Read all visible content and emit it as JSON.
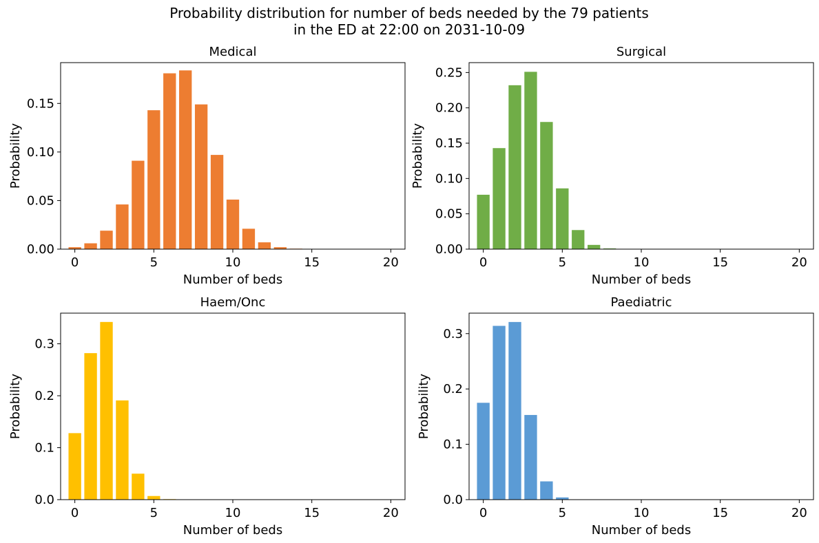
{
  "figure": {
    "title_line1": "Probability distribution for number of beds needed by the 79 patients",
    "title_line2": "in the ED at 22:00 on 2031-10-09"
  },
  "chart_data": [
    {
      "type": "bar",
      "title": "Medical",
      "xlabel": "Number of beds",
      "ylabel": "Probability",
      "color": "#ed7d31",
      "xlim": [
        -0.9,
        20.9
      ],
      "ylim": [
        0,
        0.192
      ],
      "xticks": [
        0,
        5,
        10,
        15,
        20
      ],
      "yticks": [
        0.0,
        0.05,
        0.1,
        0.15
      ],
      "ytick_labels": [
        "0.00",
        "0.05",
        "0.10",
        "0.15"
      ],
      "x": [
        0,
        1,
        2,
        3,
        4,
        5,
        6,
        7,
        8,
        9,
        10,
        11,
        12,
        13,
        14,
        15,
        16,
        17,
        18,
        19,
        20
      ],
      "values": [
        0.002,
        0.006,
        0.019,
        0.046,
        0.091,
        0.143,
        0.181,
        0.184,
        0.149,
        0.097,
        0.051,
        0.021,
        0.007,
        0.002,
        0.0005,
        0,
        0,
        0,
        0,
        0,
        0
      ]
    },
    {
      "type": "bar",
      "title": "Surgical",
      "xlabel": "Number of beds",
      "ylabel": "Probability",
      "color": "#70ad47",
      "xlim": [
        -0.9,
        20.9
      ],
      "ylim": [
        0,
        0.264
      ],
      "xticks": [
        0,
        5,
        10,
        15,
        20
      ],
      "yticks": [
        0.0,
        0.05,
        0.1,
        0.15,
        0.2,
        0.25
      ],
      "ytick_labels": [
        "0.00",
        "0.05",
        "0.10",
        "0.15",
        "0.20",
        "0.25"
      ],
      "x": [
        0,
        1,
        2,
        3,
        4,
        5,
        6,
        7,
        8,
        9,
        10,
        11,
        12,
        13,
        14,
        15,
        16,
        17,
        18,
        19,
        20
      ],
      "values": [
        0.077,
        0.143,
        0.232,
        0.251,
        0.18,
        0.086,
        0.027,
        0.006,
        0.001,
        0,
        0,
        0,
        0,
        0,
        0,
        0,
        0,
        0,
        0,
        0,
        0
      ]
    },
    {
      "type": "bar",
      "title": "Haem/Onc",
      "xlabel": "Number of beds",
      "ylabel": "Probability",
      "color": "#ffc000",
      "xlim": [
        -0.9,
        20.9
      ],
      "ylim": [
        0,
        0.359
      ],
      "xticks": [
        0,
        5,
        10,
        15,
        20
      ],
      "yticks": [
        0.0,
        0.1,
        0.2,
        0.3
      ],
      "ytick_labels": [
        "0.0",
        "0.1",
        "0.2",
        "0.3"
      ],
      "x": [
        0,
        1,
        2,
        3,
        4,
        5,
        6,
        7,
        8,
        9,
        10,
        11,
        12,
        13,
        14,
        15,
        16,
        17,
        18,
        19,
        20
      ],
      "values": [
        0.128,
        0.282,
        0.342,
        0.191,
        0.05,
        0.007,
        0.001,
        0,
        0,
        0,
        0,
        0,
        0,
        0,
        0,
        0,
        0,
        0,
        0,
        0,
        0
      ]
    },
    {
      "type": "bar",
      "title": "Paediatric",
      "xlabel": "Number of beds",
      "ylabel": "Probability",
      "color": "#5b9bd5",
      "xlim": [
        -0.9,
        20.9
      ],
      "ylim": [
        0,
        0.337
      ],
      "xticks": [
        0,
        5,
        10,
        15,
        20
      ],
      "yticks": [
        0.0,
        0.1,
        0.2,
        0.3
      ],
      "ytick_labels": [
        "0.0",
        "0.1",
        "0.2",
        "0.3"
      ],
      "x": [
        0,
        1,
        2,
        3,
        4,
        5,
        6,
        7,
        8,
        9,
        10,
        11,
        12,
        13,
        14,
        15,
        16,
        17,
        18,
        19,
        20
      ],
      "values": [
        0.175,
        0.314,
        0.321,
        0.153,
        0.033,
        0.004,
        0,
        0,
        0,
        0,
        0,
        0,
        0,
        0,
        0,
        0,
        0,
        0,
        0,
        0,
        0
      ]
    }
  ]
}
